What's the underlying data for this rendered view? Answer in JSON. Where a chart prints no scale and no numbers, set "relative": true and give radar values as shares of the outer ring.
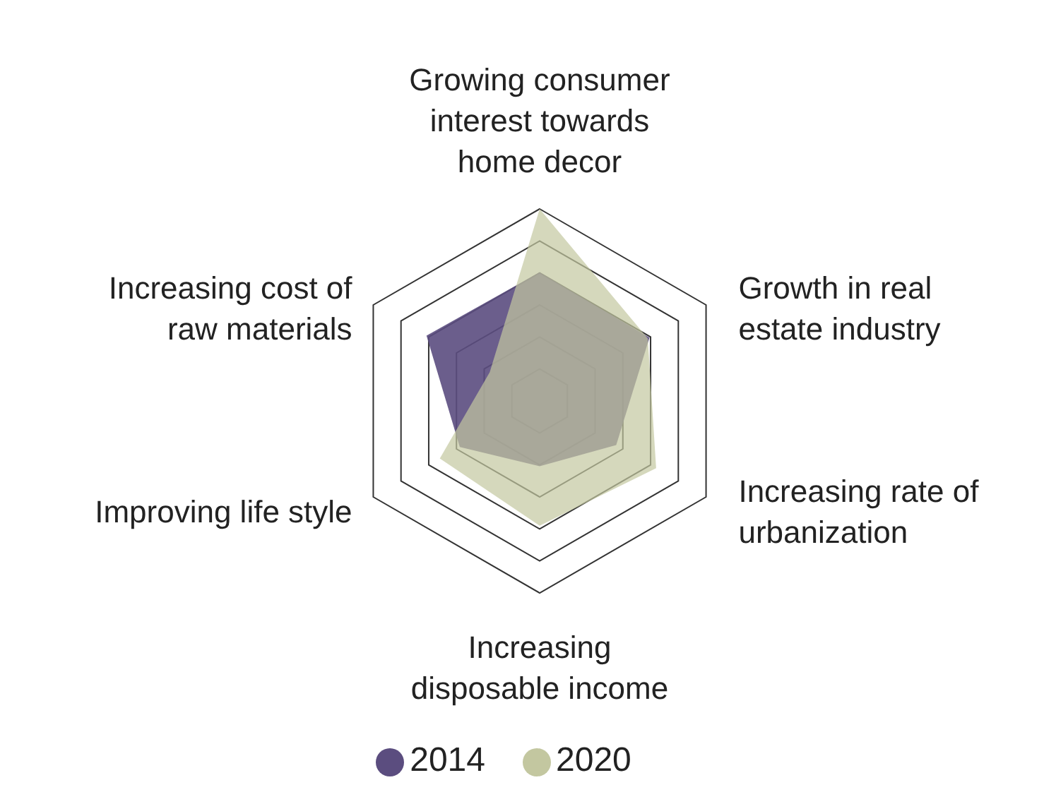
{
  "chart_data": {
    "type": "radar",
    "relative": true,
    "categories": [
      "Growing consumer interest towards home decor",
      "Growth in real estate industry",
      "Increasing rate of urbanization",
      "Increasing disposable income",
      "Improving life style",
      "Increasing cost of raw materials"
    ],
    "series": [
      {
        "name": "2014",
        "color": "#5b4d7f",
        "values": [
          0.67,
          0.66,
          0.46,
          0.34,
          0.48,
          0.68
        ]
      },
      {
        "name": "2020",
        "color": "#c3c7a0",
        "values": [
          1.0,
          0.65,
          0.7,
          0.65,
          0.6,
          0.3
        ]
      }
    ],
    "legend": "bottom",
    "grid": true
  }
}
